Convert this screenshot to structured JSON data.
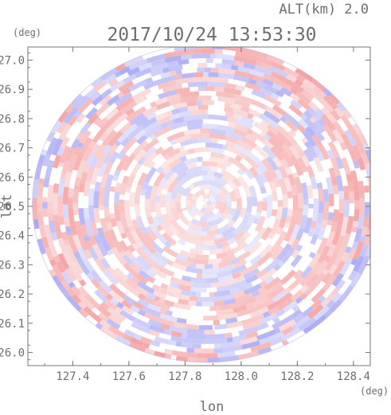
{
  "header": {
    "altitude_label": "ALT(km)  2.0",
    "timestamp": "2017/10/24 13:53:30"
  },
  "colors": {
    "positive": "#f4a0a0",
    "negative": "#a8a8f4",
    "axis": "#777777",
    "text": "#6e6e6e"
  },
  "chart_data": {
    "type": "heatmap",
    "description_type": "radar-ppi",
    "title": "2017/10/24 13:53:30",
    "subtitle": "ALT(km)  2.0",
    "xlabel": "lon",
    "ylabel": "lat",
    "xunit": "(deg)",
    "yunit": "(deg)",
    "xlim": [
      127.24,
      128.46
    ],
    "ylim": [
      25.955,
      27.045
    ],
    "xticks": [
      127.4,
      127.6,
      127.8,
      128.0,
      128.2,
      128.4
    ],
    "xtick_labels": [
      "127.4",
      "127.6",
      "127.8",
      "128.0",
      "128.2",
      "128.4"
    ],
    "yticks": [
      26.0,
      26.1,
      26.2,
      26.3,
      26.4,
      26.5,
      26.6,
      26.7,
      26.8,
      26.9,
      27.0
    ],
    "ytick_labels": [
      "26.0",
      "26.1",
      "26.2",
      "26.3",
      "26.4",
      "26.5",
      "26.6",
      "26.7",
      "26.8",
      "26.9",
      "27.0"
    ],
    "center": {
      "lon": 127.875,
      "lat": 26.51
    },
    "radius_deg_lon": 0.62,
    "radius_deg_lat": 0.545,
    "grid": false,
    "legend": "none",
    "value_pattern": "alternating red/blue concentric rings with azimuthal segments"
  }
}
